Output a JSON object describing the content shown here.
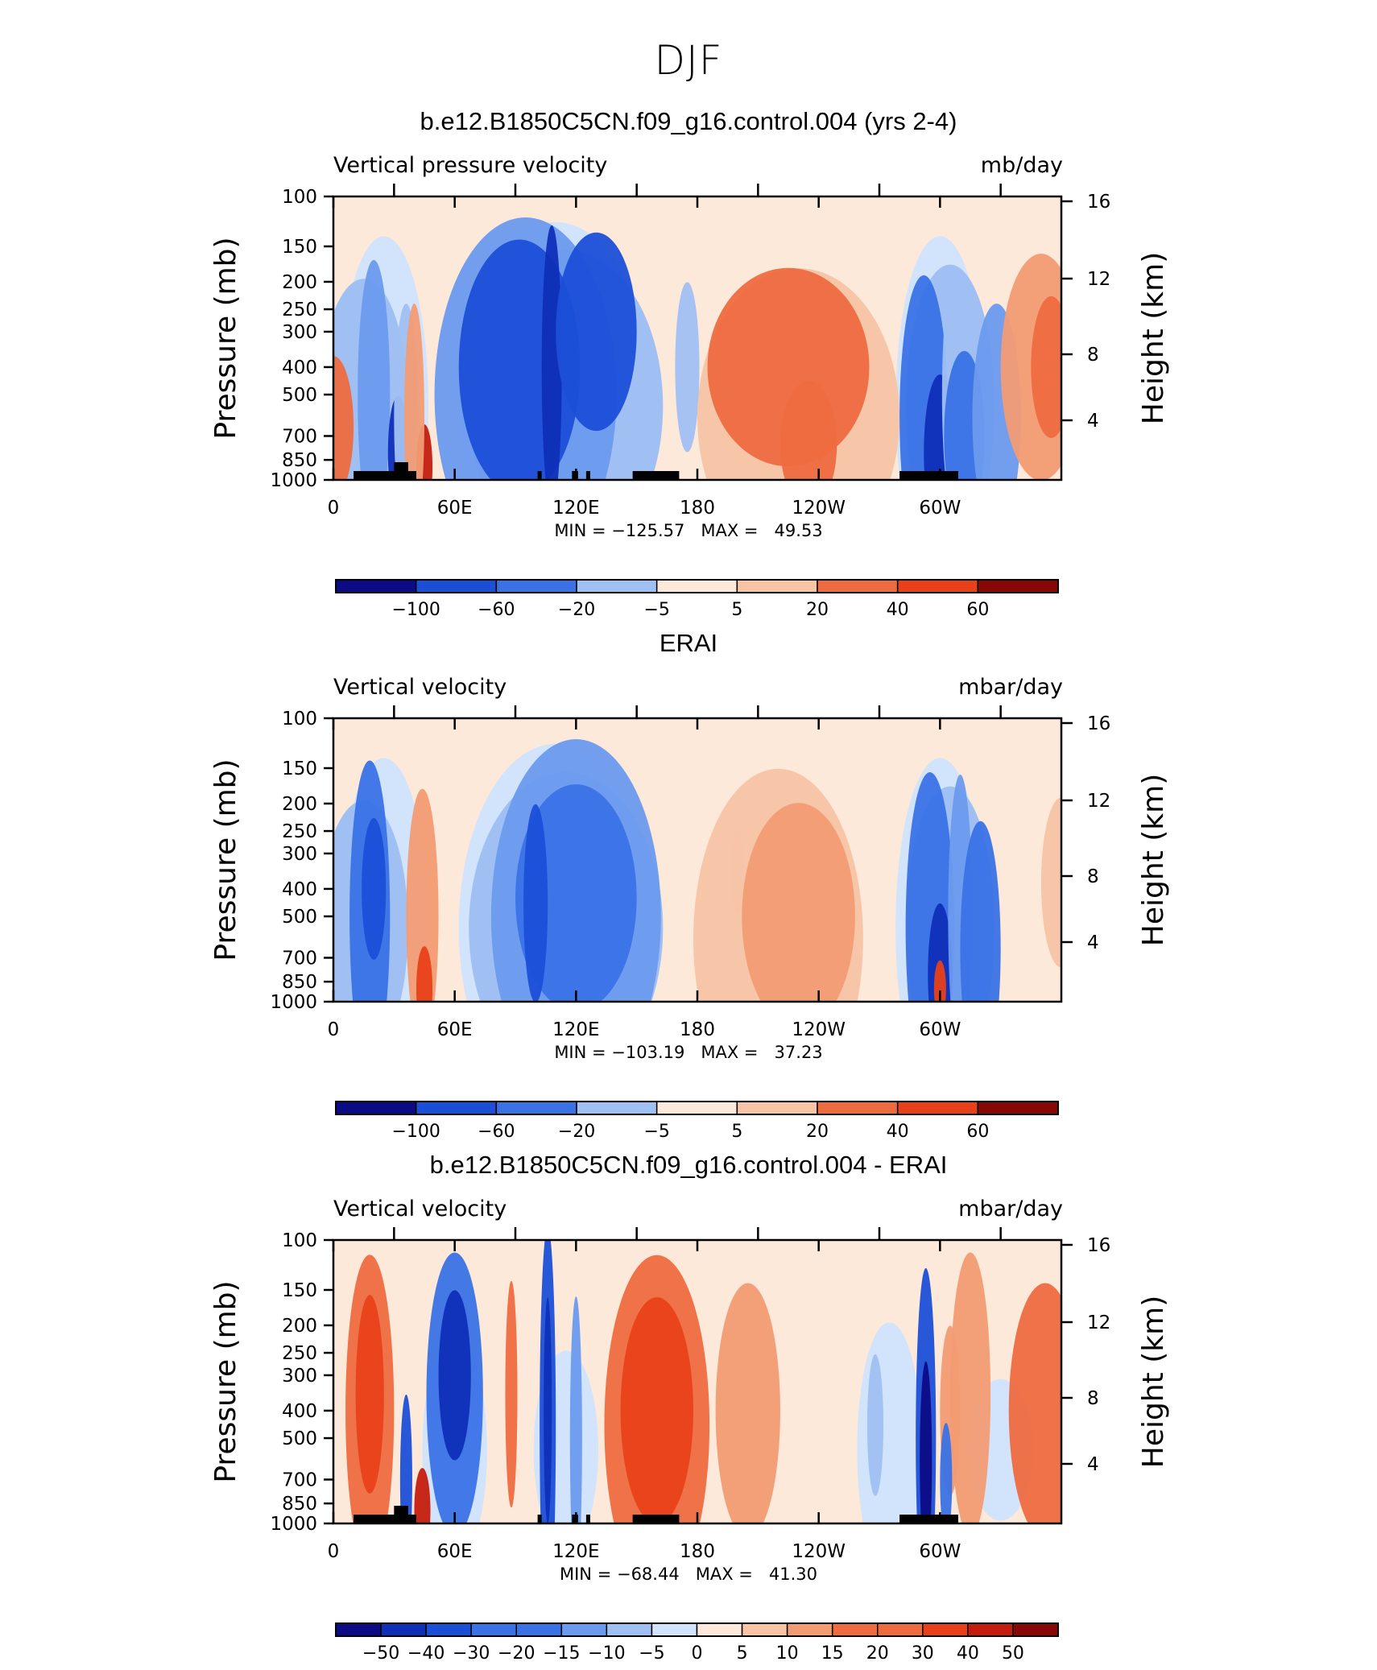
{
  "figure_title": "DJF",
  "palette": [
    "#0b0b86",
    "#0f2fb8",
    "#1c4fd8",
    "#3a72e6",
    "#6b9aee",
    "#a0c0f3",
    "#d2e4fb",
    "#fde9da",
    "#f7c4a6",
    "#f29c74",
    "#ee6b40",
    "#e8411a",
    "#c41d0f",
    "#880808"
  ],
  "chart_data": [
    {
      "type": "heatmap",
      "title": "b.e12.B1850C5CN.f09_g16.control.004 (yrs 2-4)",
      "variable": "Vertical pressure velocity",
      "units": "mb/day",
      "ylabel": "Pressure (mb)",
      "ylabel_right": "Height (km)",
      "x_ticks": [
        "0",
        "60E",
        "120E",
        "180",
        "120W",
        "60W"
      ],
      "y_ticks": [
        "100",
        "150",
        "200",
        "250",
        "300",
        "400",
        "500",
        "700",
        "850",
        "1000"
      ],
      "y_right_ticks": [
        "16",
        "12",
        "8",
        "4"
      ],
      "stats": "MIN = −125.57   MAX =   49.53",
      "min": -125.57,
      "max": 49.53,
      "colorbar_labels": [
        "−100",
        "−60",
        "−20",
        "−5",
        "5",
        "20",
        "40",
        "60"
      ],
      "topography_mask": true,
      "blobs": [
        {
          "lon": 0,
          "p": 650,
          "w": 10,
          "h": 0.5,
          "level": 10
        },
        {
          "lon": 20,
          "p": 500,
          "w": 8,
          "h": 0.95,
          "level": 4
        },
        {
          "lon": 32,
          "p": 800,
          "w": 5,
          "h": 0.4,
          "level": 1
        },
        {
          "lon": 36,
          "p": 600,
          "w": 6,
          "h": 0.8,
          "level": 5
        },
        {
          "lon": 45,
          "p": 900,
          "w": 4,
          "h": 0.3,
          "level": 12
        },
        {
          "lon": 40,
          "p": 600,
          "w": 5,
          "h": 0.8,
          "level": 9
        },
        {
          "lon": 95,
          "p": 500,
          "w": 45,
          "h": 1.25,
          "level": 4
        },
        {
          "lon": 92,
          "p": 400,
          "w": 30,
          "h": 0.9,
          "level": 2
        },
        {
          "lon": 108,
          "p": 400,
          "w": 5,
          "h": 1.0,
          "level": 1
        },
        {
          "lon": 130,
          "p": 300,
          "w": 20,
          "h": 0.7,
          "level": 2
        },
        {
          "lon": 175,
          "p": 400,
          "w": 6,
          "h": 0.6,
          "level": 5
        },
        {
          "lon": 230,
          "p": 600,
          "w": 50,
          "h": 1.05,
          "level": 8
        },
        {
          "lon": 225,
          "p": 400,
          "w": 40,
          "h": 0.7,
          "level": 10
        },
        {
          "lon": 235,
          "p": 750,
          "w": 14,
          "h": 0.45,
          "level": 10
        },
        {
          "lon": 292,
          "p": 600,
          "w": 12,
          "h": 1.0,
          "level": 3
        },
        {
          "lon": 300,
          "p": 800,
          "w": 8,
          "h": 0.55,
          "level": 1
        },
        {
          "lon": 305,
          "p": 500,
          "w": 4,
          "h": 0.7,
          "level": 5
        },
        {
          "lon": 312,
          "p": 700,
          "w": 10,
          "h": 0.6,
          "level": 3
        },
        {
          "lon": 328,
          "p": 600,
          "w": 12,
          "h": 0.8,
          "level": 4
        },
        {
          "lon": 350,
          "p": 400,
          "w": 20,
          "h": 0.8,
          "level": 9
        },
        {
          "lon": 355,
          "p": 400,
          "w": 10,
          "h": 0.5,
          "level": 10
        }
      ]
    },
    {
      "type": "heatmap",
      "title": "ERAI",
      "variable": "Vertical velocity",
      "units": "mbar/day",
      "ylabel": "Pressure (mb)",
      "ylabel_right": "Height (km)",
      "x_ticks": [
        "0",
        "60E",
        "120E",
        "180",
        "120W",
        "60W"
      ],
      "y_ticks": [
        "100",
        "150",
        "200",
        "250",
        "300",
        "400",
        "500",
        "700",
        "850",
        "1000"
      ],
      "y_right_ticks": [
        "16",
        "12",
        "8",
        "4"
      ],
      "stats": "MIN = −103.19   MAX =   37.23",
      "min": -103.19,
      "max": 37.23,
      "colorbar_labels": [
        "−100",
        "−60",
        "−20",
        "−5",
        "5",
        "20",
        "40",
        "60"
      ],
      "topography_mask": false,
      "blobs": [
        {
          "lon": 18,
          "p": 500,
          "w": 10,
          "h": 1.1,
          "level": 3
        },
        {
          "lon": 20,
          "p": 400,
          "w": 6,
          "h": 0.5,
          "level": 2
        },
        {
          "lon": 44,
          "p": 500,
          "w": 8,
          "h": 0.9,
          "level": 9
        },
        {
          "lon": 45,
          "p": 900,
          "w": 4,
          "h": 0.3,
          "level": 11
        },
        {
          "lon": 120,
          "p": 500,
          "w": 42,
          "h": 1.25,
          "level": 4
        },
        {
          "lon": 120,
          "p": 430,
          "w": 30,
          "h": 0.8,
          "level": 3
        },
        {
          "lon": 100,
          "p": 450,
          "w": 6,
          "h": 0.7,
          "level": 2
        },
        {
          "lon": 220,
          "p": 600,
          "w": 42,
          "h": 1.2,
          "level": 8
        },
        {
          "lon": 230,
          "p": 500,
          "w": 28,
          "h": 0.8,
          "level": 9
        },
        {
          "lon": 200,
          "p": 350,
          "w": 3,
          "h": 0.3,
          "level": 8
        },
        {
          "lon": 295,
          "p": 550,
          "w": 12,
          "h": 1.1,
          "level": 3
        },
        {
          "lon": 300,
          "p": 800,
          "w": 6,
          "h": 0.5,
          "level": 1
        },
        {
          "lon": 310,
          "p": 500,
          "w": 6,
          "h": 1.0,
          "level": 4
        },
        {
          "lon": 320,
          "p": 650,
          "w": 10,
          "h": 0.9,
          "level": 3
        },
        {
          "lon": 300,
          "p": 900,
          "w": 3,
          "h": 0.2,
          "level": 11
        },
        {
          "lon": 360,
          "p": 380,
          "w": 10,
          "h": 0.6,
          "level": 8
        }
      ]
    },
    {
      "type": "heatmap",
      "title": "b.e12.B1850C5CN.f09_g16.control.004 - ERAI",
      "variable": "Vertical velocity",
      "units": "mbar/day",
      "ylabel": "Pressure (mb)",
      "ylabel_right": "Height (km)",
      "x_ticks": [
        "0",
        "60E",
        "120E",
        "180",
        "120W",
        "60W"
      ],
      "y_ticks": [
        "100",
        "150",
        "200",
        "250",
        "300",
        "400",
        "500",
        "700",
        "850",
        "1000"
      ],
      "y_right_ticks": [
        "16",
        "12",
        "8",
        "4"
      ],
      "stats": "MIN = −68.44   MAX =   41.30",
      "min": -68.44,
      "max": 41.3,
      "colorbar_labels": [
        "−50",
        "−40",
        "−30",
        "−20",
        "−15",
        "−10",
        "−5",
        "0",
        "5",
        "10",
        "15",
        "20",
        "30",
        "40",
        "50"
      ],
      "topography_mask": true,
      "blobs": [
        {
          "lon": 18,
          "p": 400,
          "w": 12,
          "h": 1.1,
          "level": 10
        },
        {
          "lon": 18,
          "p": 350,
          "w": 7,
          "h": 0.7,
          "level": 11
        },
        {
          "lon": 60,
          "p": 350,
          "w": 14,
          "h": 1.0,
          "level": 3
        },
        {
          "lon": 60,
          "p": 300,
          "w": 8,
          "h": 0.6,
          "level": 1
        },
        {
          "lon": 36,
          "p": 700,
          "w": 3,
          "h": 0.6,
          "level": 2
        },
        {
          "lon": 44,
          "p": 900,
          "w": 4,
          "h": 0.3,
          "level": 12
        },
        {
          "lon": 88,
          "p": 350,
          "w": 3,
          "h": 0.8,
          "level": 10
        },
        {
          "lon": 106,
          "p": 450,
          "w": 4,
          "h": 1.4,
          "level": 2
        },
        {
          "lon": 106,
          "p": 400,
          "w": 2,
          "h": 0.8,
          "level": 1
        },
        {
          "lon": 120,
          "p": 500,
          "w": 3,
          "h": 1.0,
          "level": 4
        },
        {
          "lon": 160,
          "p": 450,
          "w": 26,
          "h": 1.2,
          "level": 10
        },
        {
          "lon": 160,
          "p": 400,
          "w": 18,
          "h": 0.8,
          "level": 11
        },
        {
          "lon": 205,
          "p": 400,
          "w": 16,
          "h": 0.9,
          "level": 9
        },
        {
          "lon": 268,
          "p": 450,
          "w": 4,
          "h": 0.5,
          "level": 5
        },
        {
          "lon": 293,
          "p": 500,
          "w": 5,
          "h": 1.2,
          "level": 2
        },
        {
          "lon": 293,
          "p": 600,
          "w": 3,
          "h": 0.7,
          "level": 0
        },
        {
          "lon": 305,
          "p": 400,
          "w": 5,
          "h": 0.6,
          "level": 9
        },
        {
          "lon": 303,
          "p": 700,
          "w": 3,
          "h": 0.4,
          "level": 3
        },
        {
          "lon": 315,
          "p": 350,
          "w": 10,
          "h": 1.0,
          "level": 9
        },
        {
          "lon": 352,
          "p": 400,
          "w": 18,
          "h": 0.9,
          "level": 10
        }
      ]
    }
  ]
}
